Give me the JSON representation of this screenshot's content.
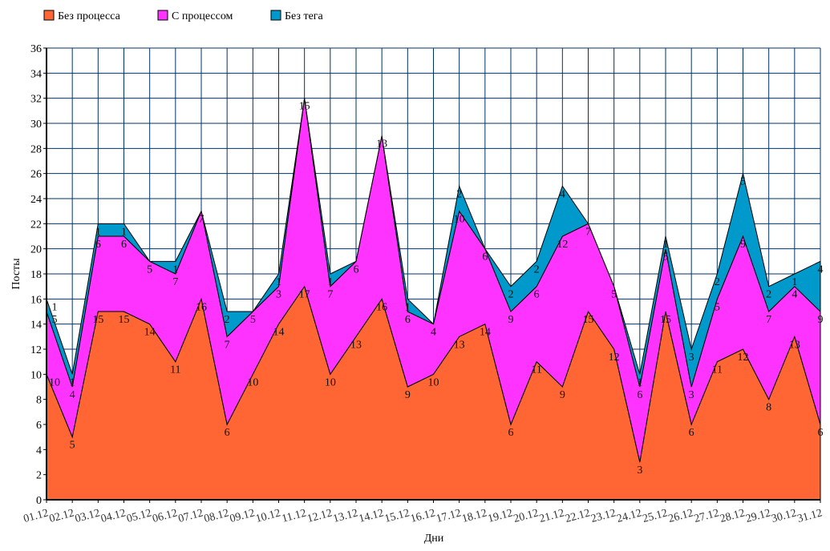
{
  "chart_data": {
    "type": "area",
    "stacked": true,
    "title": "",
    "xlabel": "Дни",
    "ylabel": "Посты",
    "ylim": [
      0,
      36
    ],
    "yticks": [
      0,
      2,
      4,
      6,
      8,
      10,
      12,
      14,
      16,
      18,
      20,
      22,
      24,
      26,
      28,
      30,
      32,
      34,
      36
    ],
    "grid": true,
    "legend_position": "top-left",
    "categories": [
      "01.12",
      "02.12",
      "03.12",
      "04.12",
      "05.12",
      "06.12",
      "07.12",
      "08.12",
      "09.12",
      "10.12",
      "11.12",
      "12.12",
      "13.12",
      "14.12",
      "15.12",
      "16.12",
      "17.12",
      "18.12",
      "19.12",
      "20.12",
      "21.12",
      "22.12",
      "23.12",
      "24.12",
      "25.12",
      "26.12",
      "27.12",
      "28.12",
      "29.12",
      "30.12",
      "31.12"
    ],
    "series": [
      {
        "name": "Без процесса",
        "color": "#ff6633",
        "values": [
          10,
          5,
          15,
          15,
          14,
          11,
          16,
          6,
          10,
          14,
          17,
          10,
          13,
          16,
          9,
          10,
          13,
          14,
          6,
          11,
          9,
          15,
          12,
          3,
          15,
          6,
          11,
          12,
          8,
          13,
          6
        ]
      },
      {
        "name": "С процессом",
        "color": "#ff33ff",
        "values": [
          5,
          4,
          6,
          6,
          5,
          7,
          7,
          7,
          5,
          3,
          15,
          7,
          6,
          13,
          6,
          4,
          10,
          6,
          9,
          6,
          12,
          7,
          5,
          6,
          5,
          3,
          5,
          9,
          7,
          4,
          9
        ]
      },
      {
        "name": "Без тега",
        "color": "#0099cc",
        "values": [
          1,
          1,
          1,
          1,
          0,
          1,
          0,
          2,
          0,
          1,
          0,
          1,
          0,
          0,
          1,
          0,
          2,
          0,
          2,
          2,
          4,
          0,
          0,
          1,
          1,
          3,
          2,
          5,
          2,
          1,
          4
        ]
      }
    ]
  }
}
